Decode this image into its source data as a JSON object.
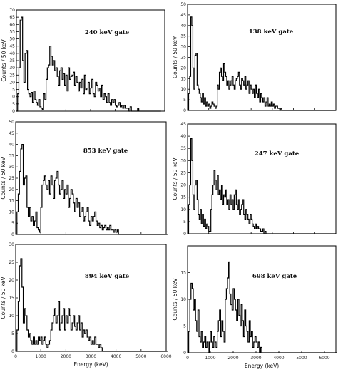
{
  "chart_data": [
    {
      "type": "line",
      "gate_label": "240 keV gate",
      "ylabel": "Counts / 50 keV",
      "xlabel": "",
      "ylim": [
        0,
        70
      ],
      "yticks": [
        0,
        5,
        10,
        15,
        20,
        25,
        30,
        35,
        40,
        45,
        50,
        55,
        60,
        65,
        70
      ],
      "xlim": [
        0,
        6000
      ],
      "xticks": [
        0,
        1000,
        2000,
        3000,
        4000,
        5000,
        6000
      ],
      "x_ticklabels": [
        "",
        "",
        "",
        "",
        "",
        "",
        ""
      ],
      "series": [
        {
          "values": [
            0,
            12,
            30,
            63,
            65,
            35,
            20,
            40,
            42,
            15,
            12,
            10,
            13,
            6,
            14,
            8,
            6,
            4,
            8,
            3,
            2,
            1,
            12,
            8,
            22,
            30,
            32,
            45,
            38,
            32,
            35,
            28,
            30,
            24,
            18,
            28,
            30,
            22,
            26,
            18,
            25,
            14,
            30,
            22,
            24,
            25,
            27,
            18,
            24,
            20,
            14,
            20,
            16,
            22,
            12,
            25,
            15,
            16,
            20,
            12,
            16,
            22,
            12,
            10,
            20,
            18,
            14,
            16,
            10,
            18,
            8,
            12,
            10,
            6,
            12,
            6,
            4,
            8,
            6,
            8,
            4,
            3,
            4,
            6,
            3,
            4,
            2,
            4,
            2,
            2,
            2,
            0,
            3,
            0,
            0,
            0,
            0,
            0,
            2,
            0,
            0,
            0,
            0,
            0,
            0,
            0,
            0,
            0,
            0,
            0,
            0,
            0,
            0,
            0,
            0,
            0,
            0
          ]
        }
      ]
    },
    {
      "type": "line",
      "gate_label": "138 keV gate",
      "ylabel": "Counts / 50 keV",
      "xlabel": "",
      "ylim": [
        0,
        50
      ],
      "yticks": [
        0,
        5,
        10,
        15,
        20,
        25,
        30,
        35,
        40,
        45,
        50
      ],
      "xlim": [
        0,
        7000
      ],
      "xticks": [
        0,
        1000,
        2000,
        3000,
        4000,
        5000,
        6000,
        7000
      ],
      "x_ticklabels": [
        "",
        "",
        "",
        "",
        "",
        "",
        "",
        ""
      ],
      "series": [
        {
          "values": [
            0,
            8,
            16,
            44,
            40,
            20,
            10,
            26,
            27,
            12,
            10,
            8,
            6,
            4,
            8,
            3,
            6,
            2,
            4,
            2,
            3,
            1,
            2,
            4,
            3,
            2,
            1,
            2,
            12,
            10,
            18,
            20,
            16,
            14,
            22,
            18,
            16,
            12,
            14,
            10,
            12,
            14,
            16,
            12,
            10,
            14,
            15,
            16,
            18,
            12,
            10,
            15,
            14,
            12,
            16,
            10,
            12,
            14,
            8,
            12,
            10,
            8,
            10,
            6,
            12,
            8,
            6,
            10,
            4,
            8,
            6,
            4,
            6,
            2,
            4,
            6,
            2,
            3,
            2,
            4,
            2,
            3,
            1,
            2,
            2,
            1,
            1,
            0,
            1,
            0,
            0,
            0,
            0,
            0,
            0,
            0,
            0,
            0,
            0,
            0,
            0,
            0,
            0,
            0,
            0,
            0,
            0,
            0,
            0,
            0,
            0,
            0,
            0,
            0,
            0,
            0,
            0,
            0,
            0,
            0,
            0,
            0,
            0,
            0,
            0,
            0,
            0,
            0,
            0,
            0,
            0,
            0,
            0,
            0,
            0,
            0,
            0,
            0,
            0,
            0
          ]
        }
      ]
    },
    {
      "type": "line",
      "gate_label": "853 keV gate",
      "ylabel": "Counts / 50 keV",
      "xlabel": "",
      "ylim": [
        0,
        50
      ],
      "yticks": [
        0,
        5,
        10,
        15,
        20,
        25,
        30,
        35,
        40,
        45,
        50
      ],
      "xlim": [
        0,
        6000
      ],
      "xticks": [
        0,
        1000,
        2000,
        3000,
        4000,
        5000,
        6000
      ],
      "x_ticklabels": [
        "",
        "",
        "",
        "",
        "",
        "",
        ""
      ],
      "series": [
        {
          "values": [
            0,
            10,
            18,
            28,
            38,
            40,
            22,
            25,
            26,
            12,
            8,
            12,
            6,
            8,
            4,
            6,
            10,
            3,
            2,
            1,
            12,
            22,
            24,
            26,
            22,
            20,
            24,
            18,
            26,
            22,
            16,
            24,
            25,
            28,
            22,
            18,
            20,
            24,
            16,
            20,
            18,
            22,
            12,
            16,
            20,
            18,
            14,
            10,
            16,
            12,
            14,
            8,
            10,
            12,
            6,
            8,
            10,
            12,
            6,
            4,
            8,
            6,
            8,
            10,
            6,
            4,
            5,
            3,
            4,
            2,
            3,
            4,
            2,
            3,
            2,
            4,
            2,
            2,
            1,
            2,
            1,
            2,
            0,
            0,
            0,
            0,
            0,
            0,
            0,
            0,
            0,
            0,
            0,
            0,
            0,
            0,
            0,
            0,
            0,
            0,
            0,
            0,
            0,
            0,
            0,
            0,
            0,
            0,
            0,
            0,
            0,
            0,
            0,
            0,
            0,
            0,
            0,
            0,
            0,
            0,
            0
          ]
        }
      ]
    },
    {
      "type": "line",
      "gate_label": "247 keV gate",
      "ylabel": "Counts / 50 keV",
      "xlabel": "",
      "ylim": [
        0,
        45
      ],
      "yticks": [
        0,
        5,
        10,
        15,
        20,
        25,
        30,
        35,
        40,
        45
      ],
      "xlim": [
        0,
        7000
      ],
      "xticks": [
        0,
        1000,
        2000,
        3000,
        4000,
        5000,
        6000,
        7000
      ],
      "x_ticklabels": [
        "",
        "",
        "",
        "",
        "",
        "",
        "",
        ""
      ],
      "series": [
        {
          "values": [
            0,
            12,
            20,
            39,
            30,
            16,
            10,
            20,
            22,
            14,
            8,
            6,
            10,
            4,
            8,
            3,
            6,
            2,
            4,
            3,
            1,
            1,
            10,
            16,
            20,
            26,
            22,
            18,
            24,
            16,
            18,
            14,
            20,
            12,
            16,
            15,
            18,
            12,
            14,
            10,
            16,
            12,
            14,
            10,
            16,
            18,
            12,
            10,
            14,
            8,
            10,
            12,
            14,
            8,
            6,
            10,
            8,
            6,
            4,
            8,
            6,
            4,
            3,
            2,
            4,
            2,
            3,
            2,
            2,
            1,
            1,
            2,
            0,
            1,
            0,
            0,
            0,
            0,
            0,
            0,
            0,
            0,
            0,
            0,
            0,
            0,
            0,
            0,
            0,
            0,
            0,
            0,
            0,
            0,
            0,
            0,
            0,
            0,
            0,
            0,
            0,
            0,
            0,
            0,
            0,
            0,
            0,
            0,
            0,
            0,
            0,
            0,
            0,
            0,
            0,
            0,
            0,
            0,
            0,
            0,
            0,
            0,
            0,
            0,
            0,
            0,
            0,
            0,
            0,
            0,
            0,
            0,
            0,
            0,
            0,
            0,
            0,
            0,
            0,
            0
          ]
        }
      ]
    },
    {
      "type": "line",
      "gate_label": "894 keV gate",
      "ylabel": "Counts / 50 keV",
      "xlabel": "Energy (keV)",
      "ylim": [
        0,
        30
      ],
      "yticks": [
        0,
        5,
        10,
        15,
        20,
        25,
        30
      ],
      "xlim": [
        0,
        6000
      ],
      "xticks": [
        0,
        1000,
        2000,
        3000,
        4000,
        5000,
        6000
      ],
      "x_ticklabels": [
        "0",
        "1000",
        "2000",
        "3000",
        "4000",
        "5000",
        "6000"
      ],
      "series": [
        {
          "values": [
            0,
            6,
            14,
            24,
            26,
            18,
            8,
            12,
            10,
            6,
            4,
            5,
            3,
            2,
            4,
            2,
            3,
            2,
            4,
            3,
            4,
            2,
            3,
            4,
            2,
            1,
            2,
            3,
            6,
            8,
            10,
            12,
            8,
            10,
            14,
            6,
            8,
            10,
            12,
            6,
            10,
            8,
            12,
            10,
            6,
            8,
            10,
            7,
            6,
            8,
            10,
            6,
            8,
            4,
            6,
            5,
            6,
            4,
            3,
            4,
            2,
            3,
            2,
            4,
            2,
            2,
            1,
            2,
            1,
            0,
            0,
            0,
            0,
            0,
            0,
            0,
            0,
            0,
            0,
            0,
            0,
            0,
            0,
            0,
            0,
            0,
            0,
            0,
            0,
            0,
            0,
            0,
            0,
            0,
            0,
            0,
            0,
            0,
            0,
            0,
            0,
            0,
            0,
            0,
            0,
            0,
            0,
            0,
            0,
            0,
            0,
            0,
            0,
            0,
            0,
            0,
            0,
            0,
            0,
            0,
            0
          ]
        }
      ]
    },
    {
      "type": "line",
      "gate_label": "698 keV gate",
      "ylabel": "Counts / 50 keV",
      "xlabel": "Energy (keV)",
      "ylim": [
        0,
        20
      ],
      "yticks": [
        0,
        5,
        10,
        15
      ],
      "xlim": [
        0,
        6500
      ],
      "xticks": [
        0,
        1000,
        2000,
        3000,
        4000,
        5000,
        6000
      ],
      "x_ticklabels": [
        "0",
        "1000",
        "2000",
        "3000",
        "4000",
        "5000",
        "6000"
      ],
      "series": [
        {
          "values": [
            0,
            4,
            10,
            13,
            12,
            8,
            10,
            6,
            4,
            8,
            3,
            2,
            4,
            1,
            2,
            3,
            1,
            2,
            0,
            2,
            4,
            2,
            1,
            3,
            2,
            1,
            4,
            6,
            8,
            3,
            6,
            4,
            2,
            10,
            12,
            14,
            17,
            11,
            9,
            8,
            12,
            10,
            8,
            6,
            10,
            7,
            5,
            9,
            6,
            3,
            8,
            5,
            4,
            2,
            6,
            3,
            4,
            1,
            2,
            3,
            2,
            1,
            2,
            0,
            1,
            0,
            0,
            0,
            0,
            0,
            0,
            0,
            0,
            0,
            0,
            0,
            0,
            0,
            0,
            0,
            0,
            0,
            0,
            0,
            0,
            0,
            0,
            0,
            0,
            0,
            0,
            0,
            0,
            0,
            0,
            0,
            0,
            0,
            0,
            0,
            0,
            0,
            0,
            0,
            0,
            0,
            0,
            0,
            0,
            0,
            0,
            0,
            0,
            0,
            0,
            0,
            0,
            0,
            0,
            0,
            0,
            0,
            0,
            0,
            0,
            0,
            0,
            0,
            0,
            0,
            0
          ]
        }
      ]
    }
  ]
}
